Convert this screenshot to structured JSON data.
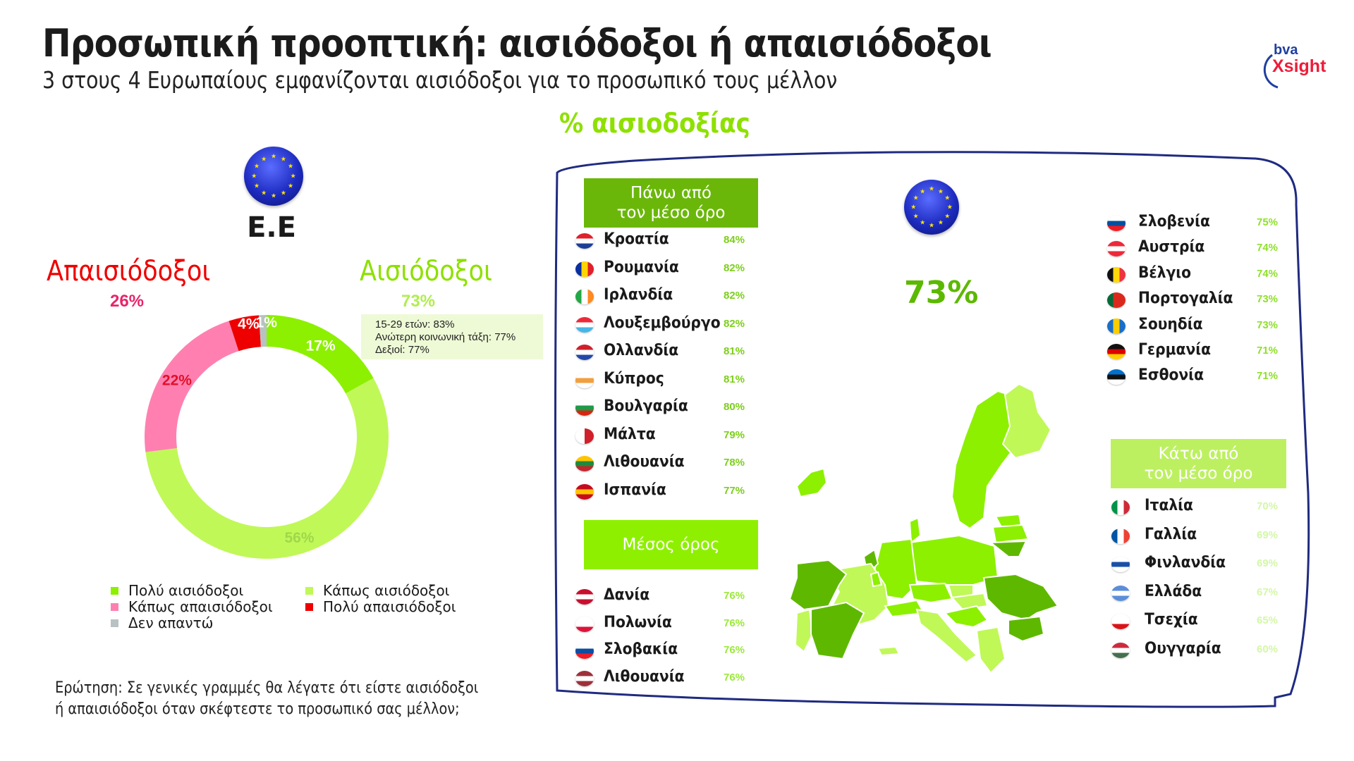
{
  "header": {
    "title": "Προσωπική προοπτική: αισιόδοξοι ή απαισιόδοξοι",
    "subtitle": "3 στους 4 Ευρωπαίους εμφανίζονται αισιόδοξοι για το προσωπικό τους μέλλον"
  },
  "logo": {
    "top": "bva",
    "bottom": "Xsight",
    "colors": {
      "bva": "#1f3fa0",
      "xsight": "#ee1c3a"
    }
  },
  "left_panel": {
    "eu_label": "Ε.Ε",
    "pessimists_label": "Απαισιόδοξοι",
    "pessimists_pct": "26%",
    "optimists_label": "Αισιόδοξοι",
    "optimists_pct": "73%",
    "info_lines": [
      "15-29 ετών: 83%",
      "Ανώτερη κοινωνική τάξη: 77%",
      "Δεξιοί: 77%"
    ],
    "question": [
      "Ερώτηση: Σε γενικές γραμμές θα λέγατε ότι είστε αισιόδοξοι",
      "ή απαισιόδοξοι όταν σκέφτεστε το προσωπικό σας μέλλον;"
    ]
  },
  "chart_data": {
    "type": "pie",
    "variant": "donut",
    "slices": [
      {
        "name": "Πολύ αισιόδοξοι",
        "value": 17,
        "label": "17%",
        "color": "#8cf000"
      },
      {
        "name": "Κάπως αισιόδοξοι",
        "value": 56,
        "label": "56%",
        "color": "#c0f858"
      },
      {
        "name": "Κάπως απαισιόδοξοι",
        "value": 22,
        "label": "22%",
        "color": "#ff80b0"
      },
      {
        "name": "Πολύ απαισιόδοξοι",
        "value": 4,
        "label": "4%",
        "color": "#ee0000"
      },
      {
        "name": "Δεν απαντώ",
        "value": 1,
        "label": "1%",
        "color": "#b8c2c2"
      }
    ],
    "legend": [
      {
        "name": "Πολύ αισιόδοξοι",
        "color": "#8cf000"
      },
      {
        "name": "Κάπως αισιόδοξοι",
        "color": "#c0f858"
      },
      {
        "name": "Κάπως απαισιόδοξοι",
        "color": "#ff80b0"
      },
      {
        "name": "Πολύ απαισιόδοξοι",
        "color": "#ee0000"
      },
      {
        "name": "Δεν απαντώ",
        "color": "#b8c2c2"
      }
    ],
    "legend_placement": "bottom"
  },
  "map_panel": {
    "title": "% αισιοδοξίας",
    "eu_pct": "73%",
    "above": {
      "header": [
        "Πάνω από",
        "τον μέσο όρο"
      ],
      "color": "#6ab70a",
      "pct_color": "#7ccf1a",
      "rows": [
        {
          "name": "Κροατία",
          "pct": "84%",
          "flag": [
            "#e0202a",
            "#ffffff",
            "#1c3f95"
          ]
        },
        {
          "name": "Ρουμανία",
          "pct": "82%",
          "flag": [
            "#0a2f9e",
            "#ffd400",
            "#e0202a"
          ],
          "vertical": true
        },
        {
          "name": "Ιρλανδία",
          "pct": "82%",
          "flag": [
            "#22a845",
            "#ffffff",
            "#ff8a1f"
          ],
          "vertical": true
        },
        {
          "name": "Λουξεμβούργο",
          "pct": "82%",
          "flag": [
            "#ee2939",
            "#ffffff",
            "#45b6e8"
          ]
        },
        {
          "name": "Ολλανδία",
          "pct": "81%",
          "flag": [
            "#d0202a",
            "#ffffff",
            "#2348a8"
          ]
        },
        {
          "name": "Κύπρος",
          "pct": "81%",
          "flag": [
            "#ffffff",
            "#f0a040",
            "#ffffff"
          ]
        },
        {
          "name": "Βουλγαρία",
          "pct": "80%",
          "flag": [
            "#ffffff",
            "#1e9a4a",
            "#d62612"
          ]
        },
        {
          "name": "Μάλτα",
          "pct": "79%",
          "flag": [
            "#ffffff",
            "#ffffff",
            "#d0202a",
            "#d0202a"
          ],
          "vertical": true
        },
        {
          "name": "Λιθουανία",
          "pct": "78%",
          "flag": [
            "#ffc400",
            "#1e8a3c",
            "#c1272d"
          ]
        },
        {
          "name": "Ισπανία",
          "pct": "77%",
          "flag": [
            "#c60b1e",
            "#ffc400",
            "#c60b1e"
          ]
        }
      ]
    },
    "average": {
      "header": "Μέσος όρος",
      "color": "#8ef000",
      "pct_color": "#9be83a",
      "rows": [
        {
          "name": "Δανία",
          "pct": "76%",
          "flag": [
            "#c8102e",
            "#ffffff",
            "#c8102e"
          ]
        },
        {
          "name": "Πολωνία",
          "pct": "76%",
          "flag": [
            "#ffffff",
            "#ffffff",
            "#dc143c"
          ]
        },
        {
          "name": "Σλοβακία",
          "pct": "76%",
          "flag": [
            "#ffffff",
            "#0b4ea2",
            "#ee1c25"
          ]
        },
        {
          "name": "Λιθουανία",
          "pct": "76%",
          "flag": [
            "#9e3039",
            "#ffffff",
            "#9e3039"
          ]
        }
      ]
    },
    "middle": {
      "pct_color": "#8ee02a",
      "rows": [
        {
          "name": "Σλοβενία",
          "pct": "75%",
          "flag": [
            "#ffffff",
            "#0050a0",
            "#ed1c24"
          ]
        },
        {
          "name": "Αυστρία",
          "pct": "74%",
          "flag": [
            "#ed2939",
            "#ffffff",
            "#ed2939"
          ]
        },
        {
          "name": "Βέλγιο",
          "pct": "74%",
          "flag": [
            "#111111",
            "#ffd90c",
            "#ef3340"
          ],
          "vertical": true
        },
        {
          "name": "Πορτογαλία",
          "pct": "73%",
          "flag": [
            "#046a38",
            "#da291c",
            "#da291c"
          ],
          "vertical": true
        },
        {
          "name": "Σουηδία",
          "pct": "73%",
          "flag": [
            "#1a6ec8",
            "#fecc00",
            "#1a6ec8"
          ],
          "vertical": true
        },
        {
          "name": "Γερμανία",
          "pct": "71%",
          "flag": [
            "#111111",
            "#dd0000",
            "#ffce00"
          ]
        },
        {
          "name": "Εσθονία",
          "pct": "71%",
          "flag": [
            "#0072ce",
            "#111111",
            "#ffffff"
          ]
        }
      ]
    },
    "below": {
      "header": [
        "Κάτω από",
        "τον μέσο όρο"
      ],
      "color": "#bdf060",
      "pct_color": "#d4f7a8",
      "rows": [
        {
          "name": "Ιταλία",
          "pct": "70%",
          "flag": [
            "#009246",
            "#ffffff",
            "#ce2b37"
          ],
          "vertical": true
        },
        {
          "name": "Γαλλία",
          "pct": "69%",
          "flag": [
            "#0055a4",
            "#ffffff",
            "#ef4135"
          ],
          "vertical": true
        },
        {
          "name": "Φινλανδία",
          "pct": "69%",
          "flag": [
            "#ffffff",
            "#1a4fa8",
            "#ffffff"
          ]
        },
        {
          "name": "Ελλάδα",
          "pct": "67%",
          "flag": [
            "#5c8ed8",
            "#ffffff",
            "#5c8ed8"
          ]
        },
        {
          "name": "Τσεχία",
          "pct": "65%",
          "flag": [
            "#ffffff",
            "#ffffff",
            "#d7141a"
          ]
        },
        {
          "name": "Ουγγαρία",
          "pct": "60%",
          "flag": [
            "#cd2a3e",
            "#ffffff",
            "#436f4d"
          ]
        }
      ]
    }
  }
}
